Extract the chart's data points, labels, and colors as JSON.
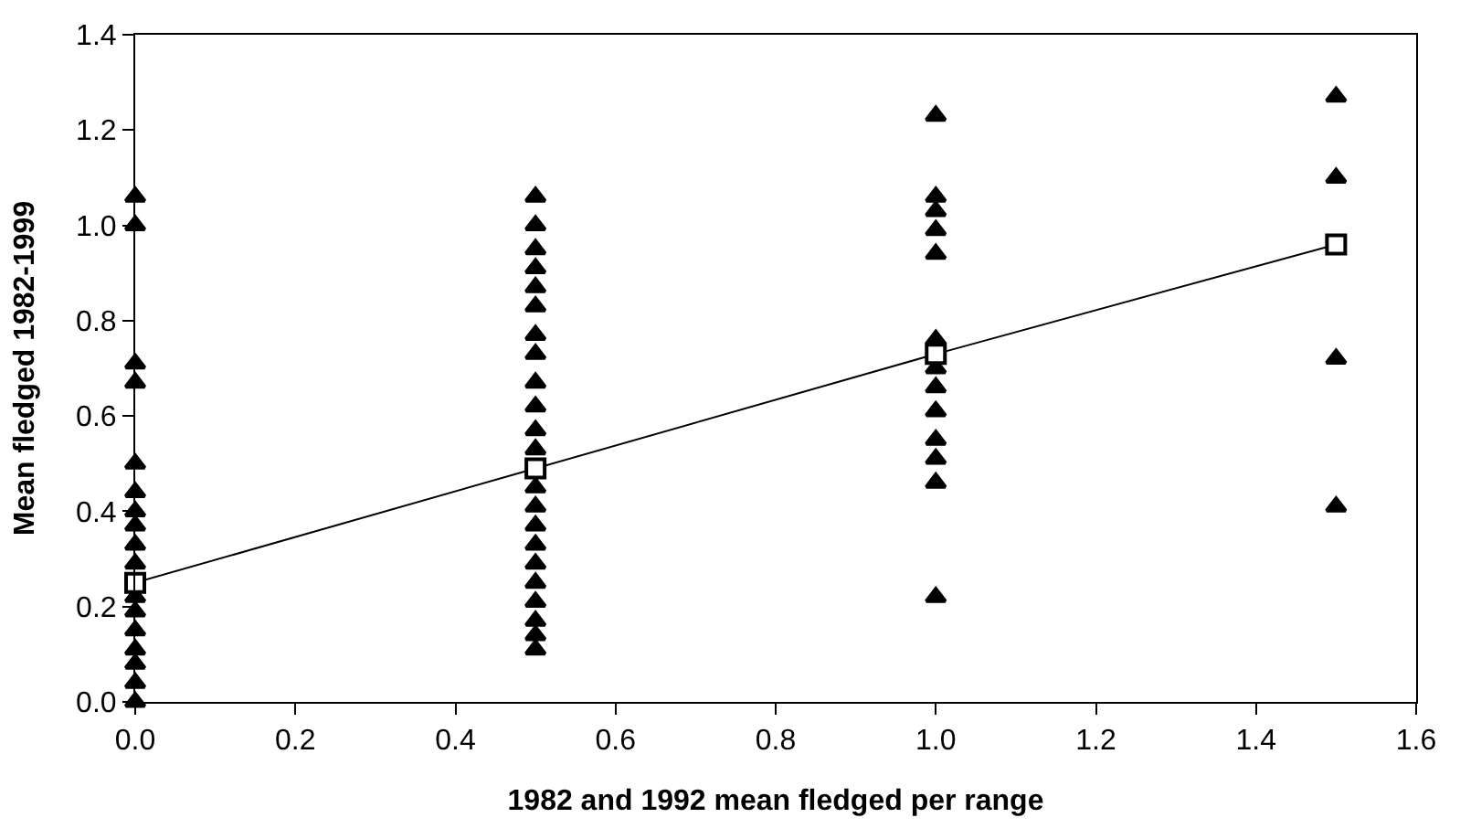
{
  "chart_data": {
    "type": "scatter",
    "xlabel": "1982 and 1992 mean fledged per range",
    "ylabel": "Mean fledged 1982-1999",
    "xlim": [
      0,
      1.6
    ],
    "xticks": [
      {
        "value": 0,
        "label": "0.0"
      },
      {
        "value": 0.2,
        "label": "0.2"
      },
      {
        "value": 0.4,
        "label": "0.4"
      },
      {
        "value": 0.6,
        "label": "0.6"
      },
      {
        "value": 0.8,
        "label": "0.8"
      },
      {
        "value": 1,
        "label": "1.0"
      },
      {
        "value": 1.2,
        "label": "1.2"
      },
      {
        "value": 1.4,
        "label": "1.4"
      },
      {
        "value": 1.6,
        "label": "1.6"
      }
    ],
    "ylim": [
      0,
      1.4
    ],
    "yticks": [
      {
        "value": 0,
        "label": "0.0"
      },
      {
        "value": 0.2,
        "label": "0.2"
      },
      {
        "value": 0.4,
        "label": "0.4"
      },
      {
        "value": 0.6,
        "label": "0.6"
      },
      {
        "value": 0.8,
        "label": "0.8"
      },
      {
        "value": 1,
        "label": "1.0"
      },
      {
        "value": 1.2,
        "label": "1.2"
      },
      {
        "value": 1.4,
        "label": "1.4"
      }
    ],
    "grid": false,
    "series": [
      {
        "type": "scatter",
        "marker": "triangle",
        "color": "#000000",
        "x": [
          0,
          0,
          0,
          0,
          0,
          0,
          0,
          0,
          0,
          0,
          0,
          0,
          0,
          0,
          0,
          0,
          0,
          0.5,
          0.5,
          0.5,
          0.5,
          0.5,
          0.5,
          0.5,
          0.5,
          0.5,
          0.5,
          0.5,
          0.5,
          0.5,
          0.5,
          0.5,
          0.5,
          0.5,
          0.5,
          0.5,
          0.5,
          0.5,
          0.5,
          1,
          1,
          1,
          1,
          1,
          1,
          1,
          1,
          1,
          1,
          1,
          1,
          1,
          1.5,
          1.5,
          1.5,
          1.5
        ],
        "values": [
          1.06,
          1.0,
          0.71,
          0.67,
          0.5,
          0.44,
          0.4,
          0.37,
          0.33,
          0.29,
          0.22,
          0.19,
          0.15,
          0.11,
          0.08,
          0.04,
          0.0,
          1.06,
          1.0,
          0.95,
          0.91,
          0.87,
          0.83,
          0.77,
          0.73,
          0.67,
          0.62,
          0.57,
          0.53,
          0.45,
          0.41,
          0.37,
          0.33,
          0.29,
          0.25,
          0.21,
          0.17,
          0.14,
          0.11,
          1.23,
          1.06,
          1.03,
          0.99,
          0.94,
          0.76,
          0.7,
          0.66,
          0.61,
          0.55,
          0.51,
          0.46,
          0.22,
          1.27,
          1.1,
          0.72,
          0.41
        ]
      },
      {
        "type": "line",
        "marker": "square",
        "line_style": "solid",
        "color": "#000000",
        "x": [
          0,
          0.5,
          1,
          1.5
        ],
        "values": [
          0.25,
          0.49,
          0.73,
          0.96
        ]
      }
    ]
  }
}
